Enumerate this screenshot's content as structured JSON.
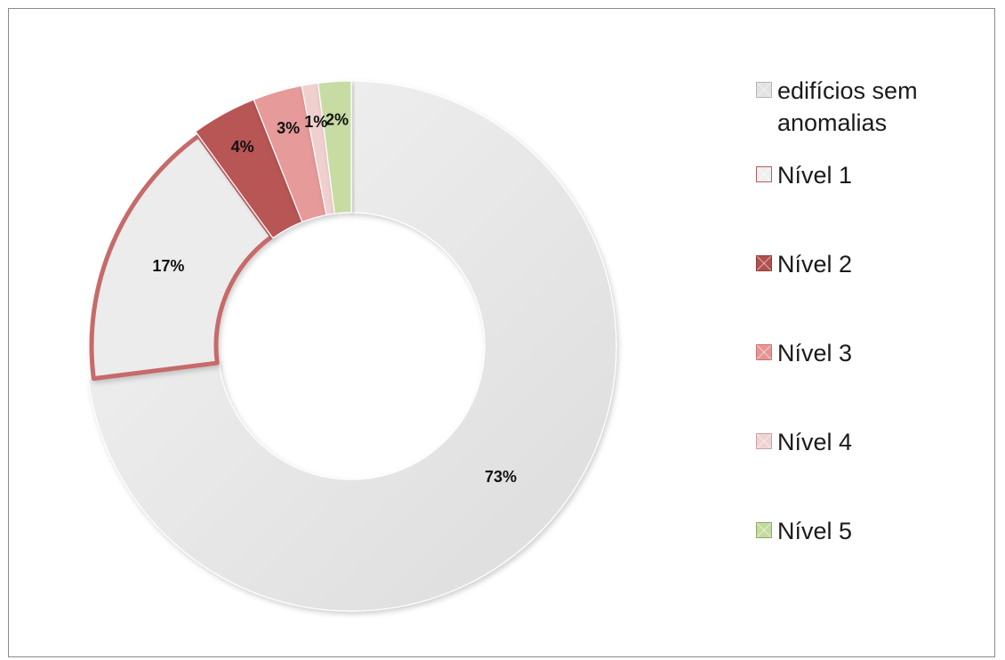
{
  "chart_data": {
    "type": "pie",
    "variant": "donut",
    "title": "",
    "categories": [
      "edifícios sem anomalias",
      "Nível 1",
      "Nível 2",
      "Nível 3",
      "Nível 4",
      "Nível 5"
    ],
    "values": [
      73,
      17,
      4,
      3,
      1,
      2
    ],
    "data_labels": [
      "73%",
      "17%",
      "4%",
      "3%",
      "1%",
      "2%"
    ],
    "colors": [
      "#e4e4e4",
      "#ececec",
      "#b85454",
      "#e69a99",
      "#f0cfcf",
      "#c7dca3"
    ],
    "highlight_border": {
      "category": "Nível 1",
      "color": "#c66b6b"
    },
    "legend_position": "right",
    "start_angle_deg": 0,
    "direction": "clockwise"
  },
  "legend": {
    "items": [
      {
        "label": "edifícios sem\nanomalias",
        "color": "#e2e2e2",
        "border": "#b5b5b5",
        "icon": "square-swatch-icon"
      },
      {
        "label": "Nível 1",
        "color": "#efefef",
        "border": "#b85c5c",
        "icon": "square-swatch-icon"
      },
      {
        "label": "Nível 2",
        "color": "#b24f4f",
        "border": "#8f3a3a",
        "icon": "square-swatch-icon"
      },
      {
        "label": "Nível 3",
        "color": "#e59593",
        "border": "#c77776",
        "icon": "square-swatch-icon"
      },
      {
        "label": "Nível 4",
        "color": "#f1d2d2",
        "border": "#c9a3a3",
        "icon": "square-swatch-icon"
      },
      {
        "label": "Nível 5",
        "color": "#c5db9f",
        "border": "#8fa86b",
        "icon": "square-swatch-icon"
      }
    ]
  }
}
